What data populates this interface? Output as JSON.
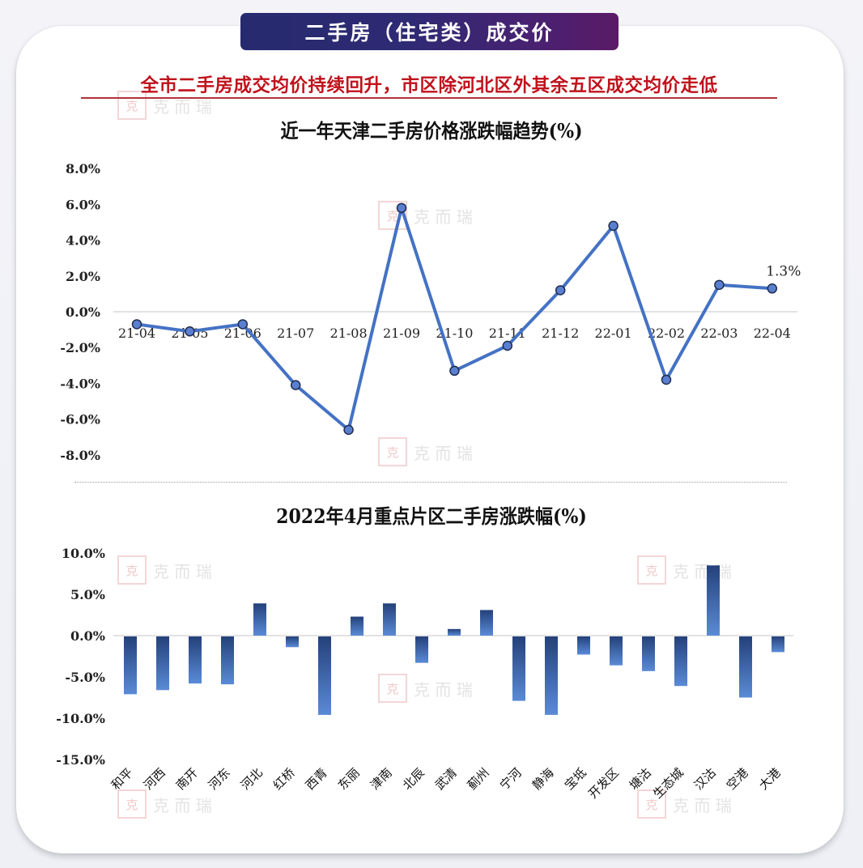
{
  "banner": {
    "title": "二手房（住宅类）成交价"
  },
  "headline": "全市二手房成交均价持续回升，市区除河北区外其余五区成交均价走低",
  "watermark": {
    "seal": "克",
    "text": "克 而 瑞"
  },
  "colors": {
    "line": "#4472c4",
    "marker_fill": "#5b7fd0",
    "marker_stroke": "#1f2d4f",
    "bar_top": "#24417a",
    "bar_bottom": "#5a8bd6",
    "axis": "#d9d9d9",
    "headline": "#c0121c"
  },
  "chart_data": [
    {
      "type": "line",
      "title": "近一年天津二手房价格涨跌幅趋势(%)",
      "xlabel": "",
      "ylabel": "",
      "categories": [
        "21-04",
        "21-05",
        "21-06",
        "21-07",
        "21-08",
        "21-09",
        "21-10",
        "21-11",
        "21-12",
        "22-01",
        "22-02",
        "22-03",
        "22-04"
      ],
      "series": [
        {
          "name": "二手房价格涨跌幅",
          "values": [
            -0.7,
            -1.1,
            -0.7,
            -4.1,
            -6.6,
            5.8,
            -3.3,
            -1.9,
            1.2,
            4.8,
            -3.8,
            1.5,
            1.3
          ]
        }
      ],
      "yticks": [
        "8.0%",
        "6.0%",
        "4.0%",
        "2.0%",
        "0.0%",
        "-2.0%",
        "-4.0%",
        "-6.0%",
        "-8.0%"
      ],
      "ylim": [
        -8,
        8
      ],
      "annotations": [
        {
          "x": "22-04",
          "text": "1.3%"
        }
      ],
      "grid": false,
      "legend": "none"
    },
    {
      "type": "bar",
      "title": "2022年4月重点片区二手房涨跌幅(%)",
      "xlabel": "",
      "ylabel": "",
      "categories": [
        "和平",
        "河西",
        "南开",
        "河东",
        "河北",
        "红桥",
        "西青",
        "东丽",
        "津南",
        "北辰",
        "武清",
        "蓟州",
        "宁河",
        "静海",
        "宝坻",
        "开发区",
        "塘沽",
        "生态城",
        "汉沽",
        "空港",
        "大港"
      ],
      "values": [
        -7.0,
        -6.5,
        -5.7,
        -5.8,
        3.9,
        -1.3,
        -9.5,
        2.3,
        3.9,
        -3.2,
        0.8,
        3.1,
        -7.8,
        -9.5,
        -2.2,
        -3.5,
        -4.2,
        -6.0,
        8.5,
        -7.4,
        -1.9
      ],
      "yticks": [
        "10.0%",
        "5.0%",
        "0.0%",
        "-5.0%",
        "-10.0%",
        "-15.0%"
      ],
      "ylim": [
        -15,
        10
      ],
      "grid": false,
      "legend": "none"
    }
  ]
}
